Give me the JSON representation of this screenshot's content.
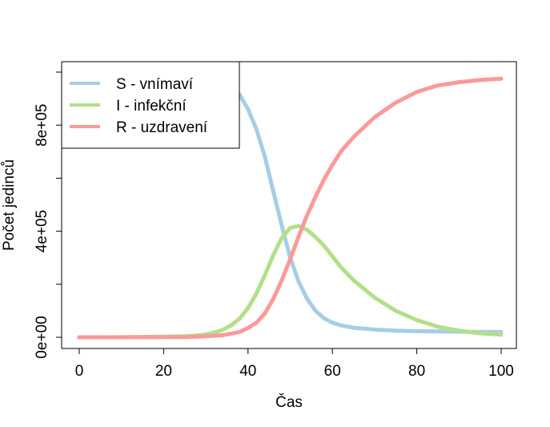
{
  "chart_data": {
    "type": "line",
    "title": "",
    "xlabel": "Čas",
    "ylabel": "Počet jedinců",
    "xlim": [
      0,
      100
    ],
    "ylim": [
      0,
      1000000
    ],
    "x_ticks": [
      0,
      20,
      40,
      60,
      80,
      100
    ],
    "x_tick_labels": [
      "0",
      "20",
      "40",
      "60",
      "80",
      "100"
    ],
    "y_ticks": [
      0,
      200000,
      400000,
      600000,
      800000,
      1000000
    ],
    "y_tick_labels": [
      "0e+00",
      "",
      "4e+05",
      "",
      "8e+05",
      ""
    ],
    "grid": false,
    "legend_position": "top-left",
    "series": [
      {
        "name": "S - vnímaví",
        "color": "#a6cee3",
        "x": [
          0,
          10,
          20,
          25,
          30,
          32,
          34,
          36,
          38,
          40,
          42,
          44,
          46,
          48,
          50,
          52,
          54,
          56,
          58,
          60,
          62,
          65,
          70,
          75,
          80,
          85,
          90,
          95,
          100
        ],
        "values": [
          999990,
          999970,
          999500,
          998500,
          993000,
          985000,
          970000,
          945000,
          915000,
          860000,
          785000,
          680000,
          550000,
          420000,
          300000,
          210000,
          145000,
          100000,
          72000,
          55000,
          45000,
          36000,
          29000,
          25000,
          23000,
          22000,
          21000,
          20000,
          20000
        ]
      },
      {
        "name": "I - infekční",
        "color": "#b2df8a",
        "x": [
          0,
          10,
          20,
          25,
          28,
          30,
          32,
          34,
          36,
          38,
          40,
          42,
          44,
          46,
          48,
          50,
          52,
          54,
          56,
          58,
          60,
          62,
          65,
          70,
          75,
          80,
          85,
          90,
          95,
          100
        ],
        "values": [
          0,
          300,
          2000,
          4000,
          7000,
          11000,
          18000,
          28000,
          45000,
          70000,
          110000,
          165000,
          235000,
          310000,
          375000,
          412000,
          420000,
          405000,
          378000,
          345000,
          305000,
          265000,
          215000,
          150000,
          100000,
          65000,
          40000,
          25000,
          15000,
          10000
        ]
      },
      {
        "name": "R - uzdravení",
        "color": "#fb9a99",
        "x": [
          0,
          10,
          20,
          25,
          30,
          34,
          38,
          40,
          42,
          44,
          46,
          48,
          50,
          52,
          54,
          56,
          58,
          60,
          62,
          65,
          70,
          75,
          80,
          85,
          90,
          95,
          100
        ],
        "values": [
          0,
          100,
          500,
          1000,
          3500,
          8000,
          20000,
          35000,
          55000,
          90000,
          145000,
          215000,
          295000,
          380000,
          460000,
          530000,
          595000,
          650000,
          700000,
          755000,
          830000,
          885000,
          925000,
          950000,
          962000,
          970000,
          975000
        ]
      }
    ]
  }
}
